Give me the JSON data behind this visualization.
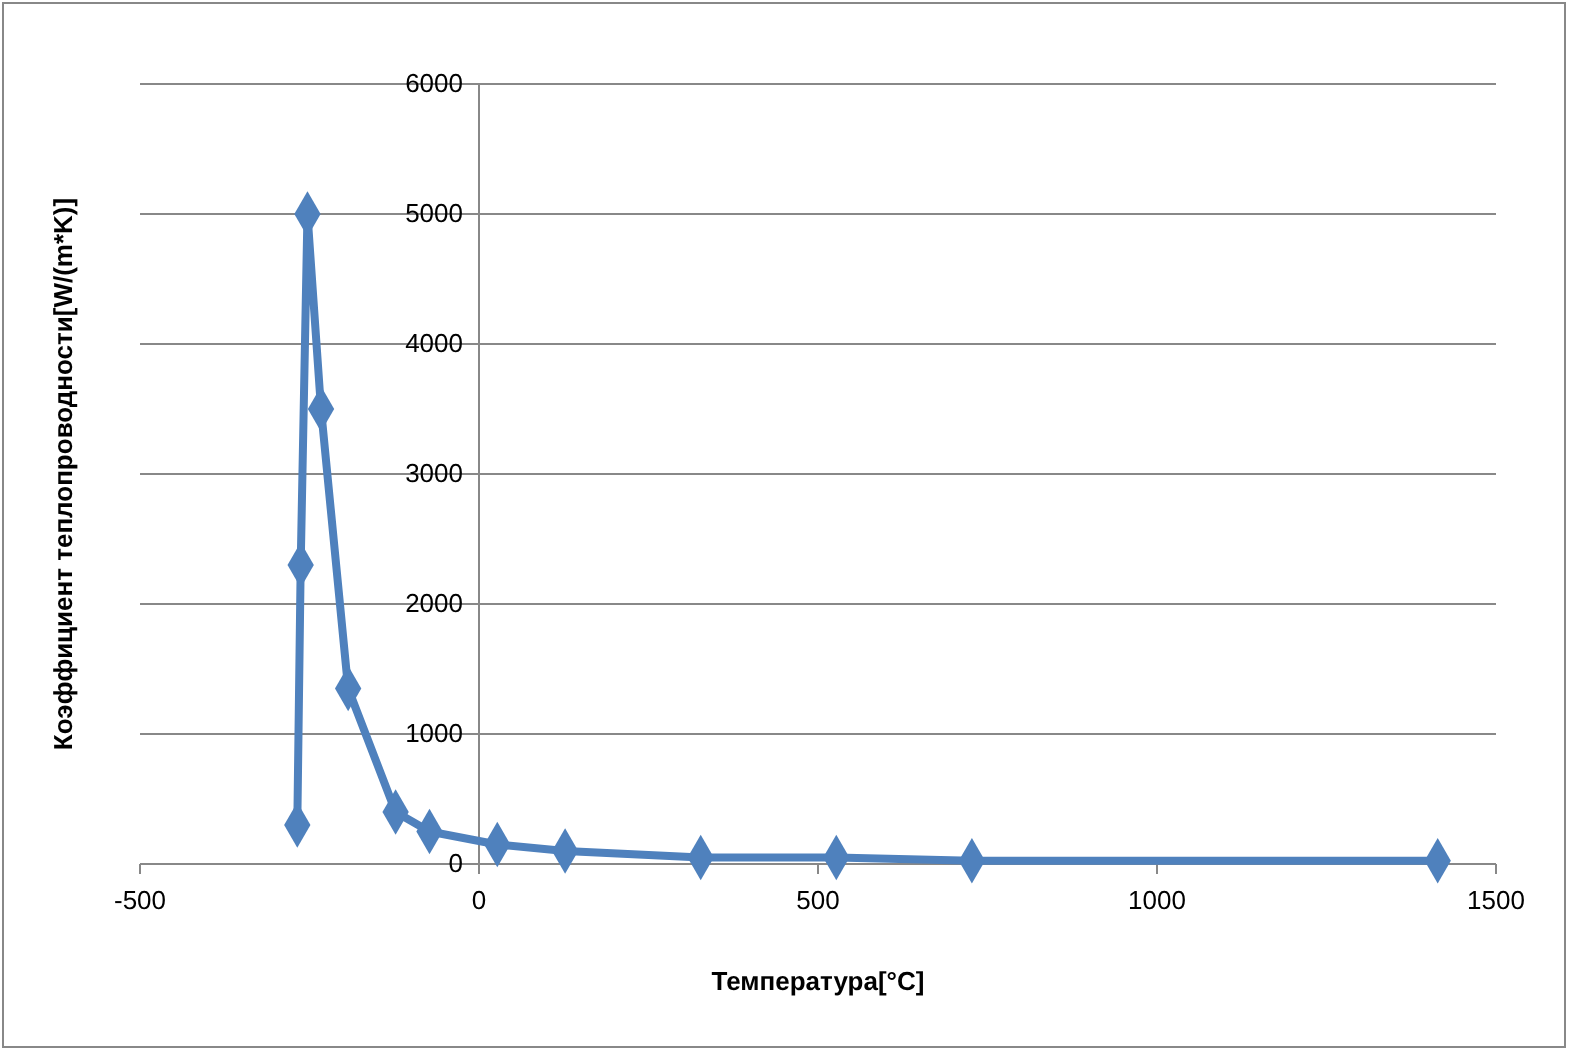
{
  "chart_data": {
    "type": "line",
    "xlabel": "Температура[°C]",
    "ylabel": "Коэффициент теплопроводности[W/(m*K)]",
    "x": [
      -268,
      -263,
      -253,
      -233,
      -193,
      -123,
      -73,
      27,
      127,
      327,
      527,
      727,
      1414
    ],
    "series": [
      {
        "color": "#4f81bd",
        "values": [
          300,
          2300,
          5000,
          3500,
          1350,
          400,
          250,
          150,
          100,
          50,
          50,
          25,
          25
        ]
      }
    ],
    "xlim": [
      -500,
      1500
    ],
    "xticks": [
      -500,
      0,
      500,
      1000,
      1500
    ],
    "ylim": [
      0,
      6000
    ],
    "yticks": [
      0,
      1000,
      2000,
      3000,
      4000,
      5000,
      6000
    ],
    "grid": "y",
    "marker": "diamond",
    "line_style": "solid"
  }
}
